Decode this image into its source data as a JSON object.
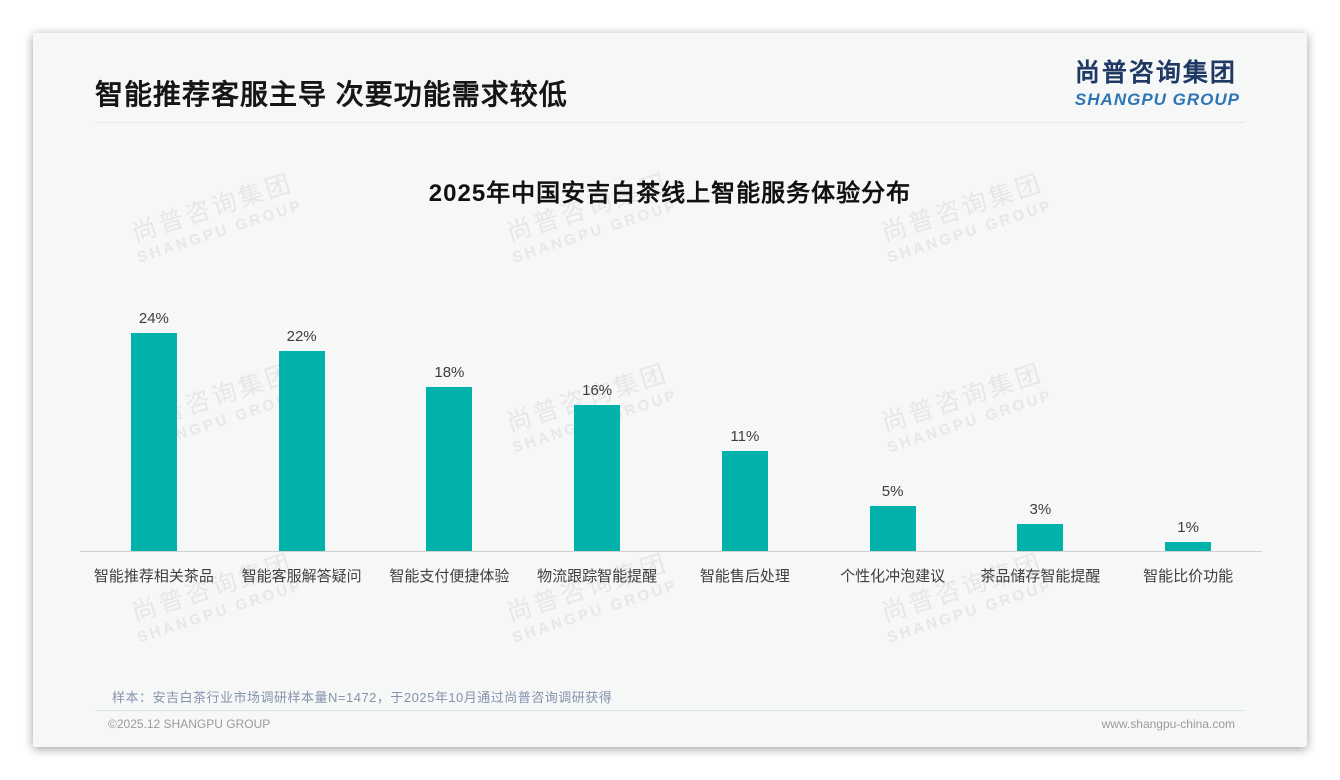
{
  "header": {
    "title": "智能推荐客服主导 次要功能需求较低",
    "logo_cn": "尚普咨询集团",
    "logo_en": "SHANGPU GROUP"
  },
  "watermark": {
    "line1": "尚普咨询集团",
    "line2": "SHANGPU GROUP"
  },
  "chart_data": {
    "type": "bar",
    "title": "2025年中国安吉白茶线上智能服务体验分布",
    "categories": [
      "智能推荐相关茶品",
      "智能客服解答疑问",
      "智能支付便捷体验",
      "物流跟踪智能提醒",
      "智能售后处理",
      "个性化冲泡建议",
      "茶品储存智能提醒",
      "智能比价功能"
    ],
    "values": [
      24,
      22,
      18,
      16,
      11,
      5,
      3,
      1
    ],
    "unit": "%",
    "bar_color": "#00B2A9",
    "ylim": [
      0,
      26
    ],
    "grid": false,
    "legend": "none",
    "value_labels": true
  },
  "footnote": {
    "text": "样本：安吉白茶行业市场调研样本量N=1472，于2025年10月通过尚普咨询调研获得"
  },
  "footer": {
    "left": "©2025.12 SHANGPU GROUP",
    "right": "www.shangpu-china.com"
  }
}
